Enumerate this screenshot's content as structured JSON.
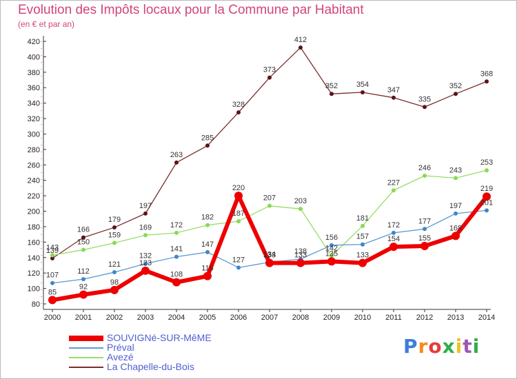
{
  "title": "Evolution des Impôts locaux pour la Commune par Habitant",
  "subtitle": "(en € et par an)",
  "logo_text": "Proxiti",
  "chart_data": {
    "type": "line",
    "title": "Evolution des Impôts locaux pour la Commune par Habitant",
    "subtitle": "(en € et par an)",
    "xlabel": "",
    "ylabel": "",
    "ylim": [
      80,
      420
    ],
    "ytick_step": 20,
    "grid": false,
    "legend_position": "bottom-left",
    "x": [
      "2000",
      "2001",
      "2002",
      "2003",
      "2004",
      "2005",
      "2006",
      "2007",
      "2008",
      "2009",
      "2010",
      "2011",
      "2012",
      "2013",
      "2014"
    ],
    "series": [
      {
        "name": "La Chapelle-du-Bois",
        "color": "#7b2b2e",
        "point_color": "#5a1418",
        "width": 1.3,
        "radius": 3,
        "values": [
          139,
          166,
          179,
          197,
          263,
          285,
          328,
          373,
          412,
          352,
          354,
          347,
          335,
          352,
          368
        ],
        "labels": [
          "139",
          "166",
          "179",
          "197",
          "263",
          "285",
          "328",
          "373",
          "412",
          "352",
          "354",
          "347",
          "335",
          "352",
          "368"
        ]
      },
      {
        "name": "Avezé",
        "color": "#99dd66",
        "point_color": "#88d955",
        "width": 1.3,
        "radius": 3,
        "values": [
          143,
          150,
          159,
          169,
          172,
          182,
          187,
          207,
          203,
          142,
          181,
          227,
          246,
          243,
          253
        ],
        "labels": [
          "143",
          "150",
          "159",
          "169",
          "172",
          "182",
          "187",
          "207",
          "203",
          "142",
          "181",
          "227",
          "246",
          "243",
          "253"
        ]
      },
      {
        "name": "Préval",
        "color": "#5a9ad4",
        "point_color": "#3f86c8",
        "width": 1.3,
        "radius": 3,
        "values": [
          107,
          112,
          121,
          132,
          141,
          147,
          127,
          134,
          138,
          156,
          157,
          172,
          177,
          197,
          201
        ],
        "labels": [
          "107",
          "112",
          "121",
          "132",
          "141",
          "147",
          "127",
          "134",
          "138",
          "156",
          "157",
          "172",
          "177",
          "197",
          "201"
        ]
      },
      {
        "name": "SOUVIGNé-SUR-MêME",
        "color": "#ee0000",
        "point_color": "#ee0000",
        "width": 6,
        "radius": 6,
        "values": [
          85,
          92,
          98,
          123,
          108,
          116,
          220,
          133,
          133,
          135,
          133,
          154,
          155,
          168,
          219
        ],
        "labels": [
          "85",
          "92",
          "98",
          "123",
          "108",
          "116",
          "220",
          "133",
          "133",
          "135",
          "133",
          "154",
          "155",
          "168",
          "219"
        ]
      }
    ]
  },
  "legend": [
    {
      "label": "SOUVIGNé-SUR-MêME",
      "color": "#ee0000",
      "thickness": 8
    },
    {
      "label": "Préval",
      "color": "#5a9ad4",
      "thickness": 2
    },
    {
      "label": "Avezé",
      "color": "#99dd66",
      "thickness": 2
    },
    {
      "label": "La Chapelle-du-Bois",
      "color": "#7b2b2e",
      "thickness": 2
    }
  ]
}
